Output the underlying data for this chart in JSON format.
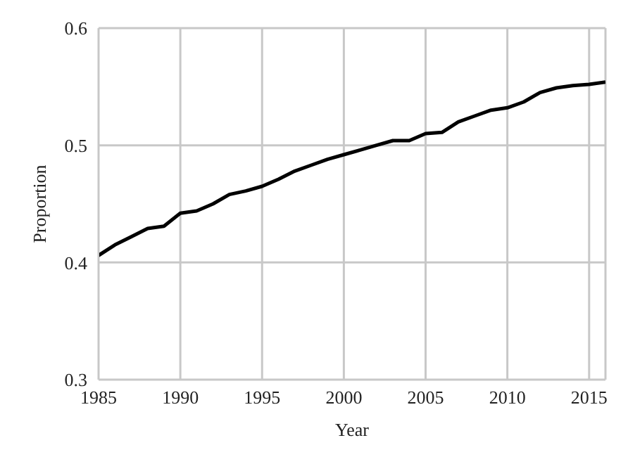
{
  "chart_data": {
    "type": "line",
    "xlabel": "Year",
    "ylabel": "Proportion",
    "x": [
      1985,
      1986,
      1987,
      1988,
      1989,
      1990,
      1991,
      1992,
      1993,
      1994,
      1995,
      1996,
      1997,
      1998,
      1999,
      2000,
      2001,
      2002,
      2003,
      2004,
      2005,
      2006,
      2007,
      2008,
      2009,
      2010,
      2011,
      2012,
      2013,
      2014,
      2015,
      2016
    ],
    "series": [
      {
        "color": "#000000",
        "values": [
          0.406,
          0.415,
          0.422,
          0.429,
          0.431,
          0.442,
          0.444,
          0.45,
          0.458,
          0.461,
          0.465,
          0.471,
          0.478,
          0.483,
          0.488,
          0.492,
          0.496,
          0.5,
          0.504,
          0.504,
          0.51,
          0.511,
          0.52,
          0.525,
          0.53,
          0.532,
          0.537,
          0.545,
          0.549,
          0.551,
          0.552,
          0.554
        ]
      }
    ],
    "xlim": [
      1985,
      2016
    ],
    "xticks": [
      1985,
      1990,
      1995,
      2000,
      2005,
      2010,
      2015
    ],
    "ylim": [
      0.3,
      0.6
    ],
    "yticks": [
      0.3,
      0.4,
      0.5,
      0.6
    ],
    "grid": true,
    "marker": "none",
    "line_style": "solid"
  }
}
